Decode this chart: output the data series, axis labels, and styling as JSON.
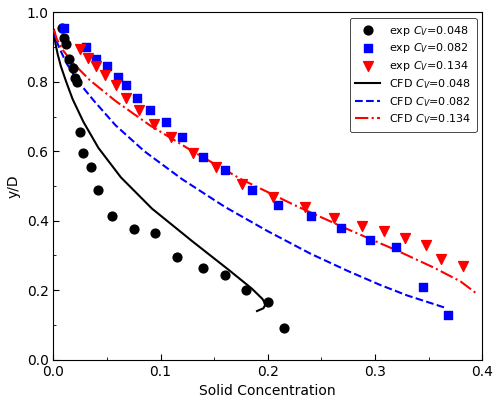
{
  "exp_048_x": [
    0.008,
    0.01,
    0.012,
    0.015,
    0.018,
    0.02,
    0.022,
    0.025,
    0.028,
    0.035,
    0.042,
    0.055,
    0.075,
    0.095,
    0.115,
    0.14,
    0.16,
    0.18,
    0.2,
    0.215
  ],
  "exp_048_y": [
    0.955,
    0.925,
    0.91,
    0.865,
    0.84,
    0.81,
    0.8,
    0.655,
    0.595,
    0.555,
    0.49,
    0.415,
    0.375,
    0.365,
    0.295,
    0.265,
    0.245,
    0.2,
    0.165,
    0.09
  ],
  "exp_082_x": [
    0.01,
    0.03,
    0.04,
    0.05,
    0.06,
    0.068,
    0.078,
    0.09,
    0.105,
    0.12,
    0.14,
    0.16,
    0.185,
    0.21,
    0.24,
    0.268,
    0.295,
    0.32,
    0.345,
    0.368
  ],
  "exp_082_y": [
    0.955,
    0.9,
    0.865,
    0.845,
    0.815,
    0.79,
    0.755,
    0.72,
    0.685,
    0.64,
    0.585,
    0.545,
    0.49,
    0.445,
    0.415,
    0.38,
    0.345,
    0.325,
    0.21,
    0.13
  ],
  "exp_134_x": [
    0.025,
    0.032,
    0.04,
    0.048,
    0.058,
    0.068,
    0.08,
    0.094,
    0.11,
    0.13,
    0.152,
    0.176,
    0.205,
    0.235,
    0.262,
    0.288,
    0.308,
    0.328,
    0.348,
    0.362,
    0.382
  ],
  "exp_134_y": [
    0.895,
    0.87,
    0.845,
    0.82,
    0.79,
    0.755,
    0.72,
    0.68,
    0.64,
    0.595,
    0.555,
    0.505,
    0.468,
    0.44,
    0.408,
    0.385,
    0.37,
    0.35,
    0.33,
    0.29,
    0.27
  ],
  "cfd_048_x": [
    0.0005,
    0.001,
    0.002,
    0.004,
    0.007,
    0.012,
    0.018,
    0.028,
    0.042,
    0.063,
    0.092,
    0.13,
    0.163,
    0.185,
    0.195,
    0.198,
    0.196,
    0.19
  ],
  "cfd_048_y": [
    0.95,
    0.93,
    0.91,
    0.88,
    0.845,
    0.8,
    0.75,
    0.685,
    0.61,
    0.525,
    0.435,
    0.34,
    0.26,
    0.205,
    0.175,
    0.16,
    0.148,
    0.14
  ],
  "cfd_082_x": [
    0.0005,
    0.002,
    0.006,
    0.012,
    0.022,
    0.038,
    0.058,
    0.085,
    0.12,
    0.16,
    0.2,
    0.24,
    0.275,
    0.305,
    0.33,
    0.35,
    0.365
  ],
  "cfd_082_y": [
    0.95,
    0.925,
    0.895,
    0.855,
    0.805,
    0.745,
    0.675,
    0.6,
    0.52,
    0.44,
    0.37,
    0.305,
    0.255,
    0.215,
    0.185,
    0.165,
    0.15
  ],
  "cfd_134_x": [
    0.0005,
    0.003,
    0.008,
    0.018,
    0.034,
    0.058,
    0.09,
    0.13,
    0.175,
    0.225,
    0.275,
    0.32,
    0.355,
    0.38,
    0.395
  ],
  "cfd_134_y": [
    0.95,
    0.925,
    0.895,
    0.855,
    0.805,
    0.745,
    0.675,
    0.6,
    0.52,
    0.445,
    0.375,
    0.315,
    0.265,
    0.225,
    0.19
  ],
  "xlabel": "Solid Concentration",
  "ylabel": "y/D",
  "xlim": [
    0.0,
    0.4
  ],
  "ylim": [
    0.0,
    1.0
  ],
  "legend_labels": [
    "exp $C_V$=0.048",
    "exp $C_V$=0.082",
    "exp $C_V$=0.134",
    "CFD $C_V$=0.048",
    "CFD $C_V$=0.082",
    "CFD $C_V$=0.134"
  ]
}
